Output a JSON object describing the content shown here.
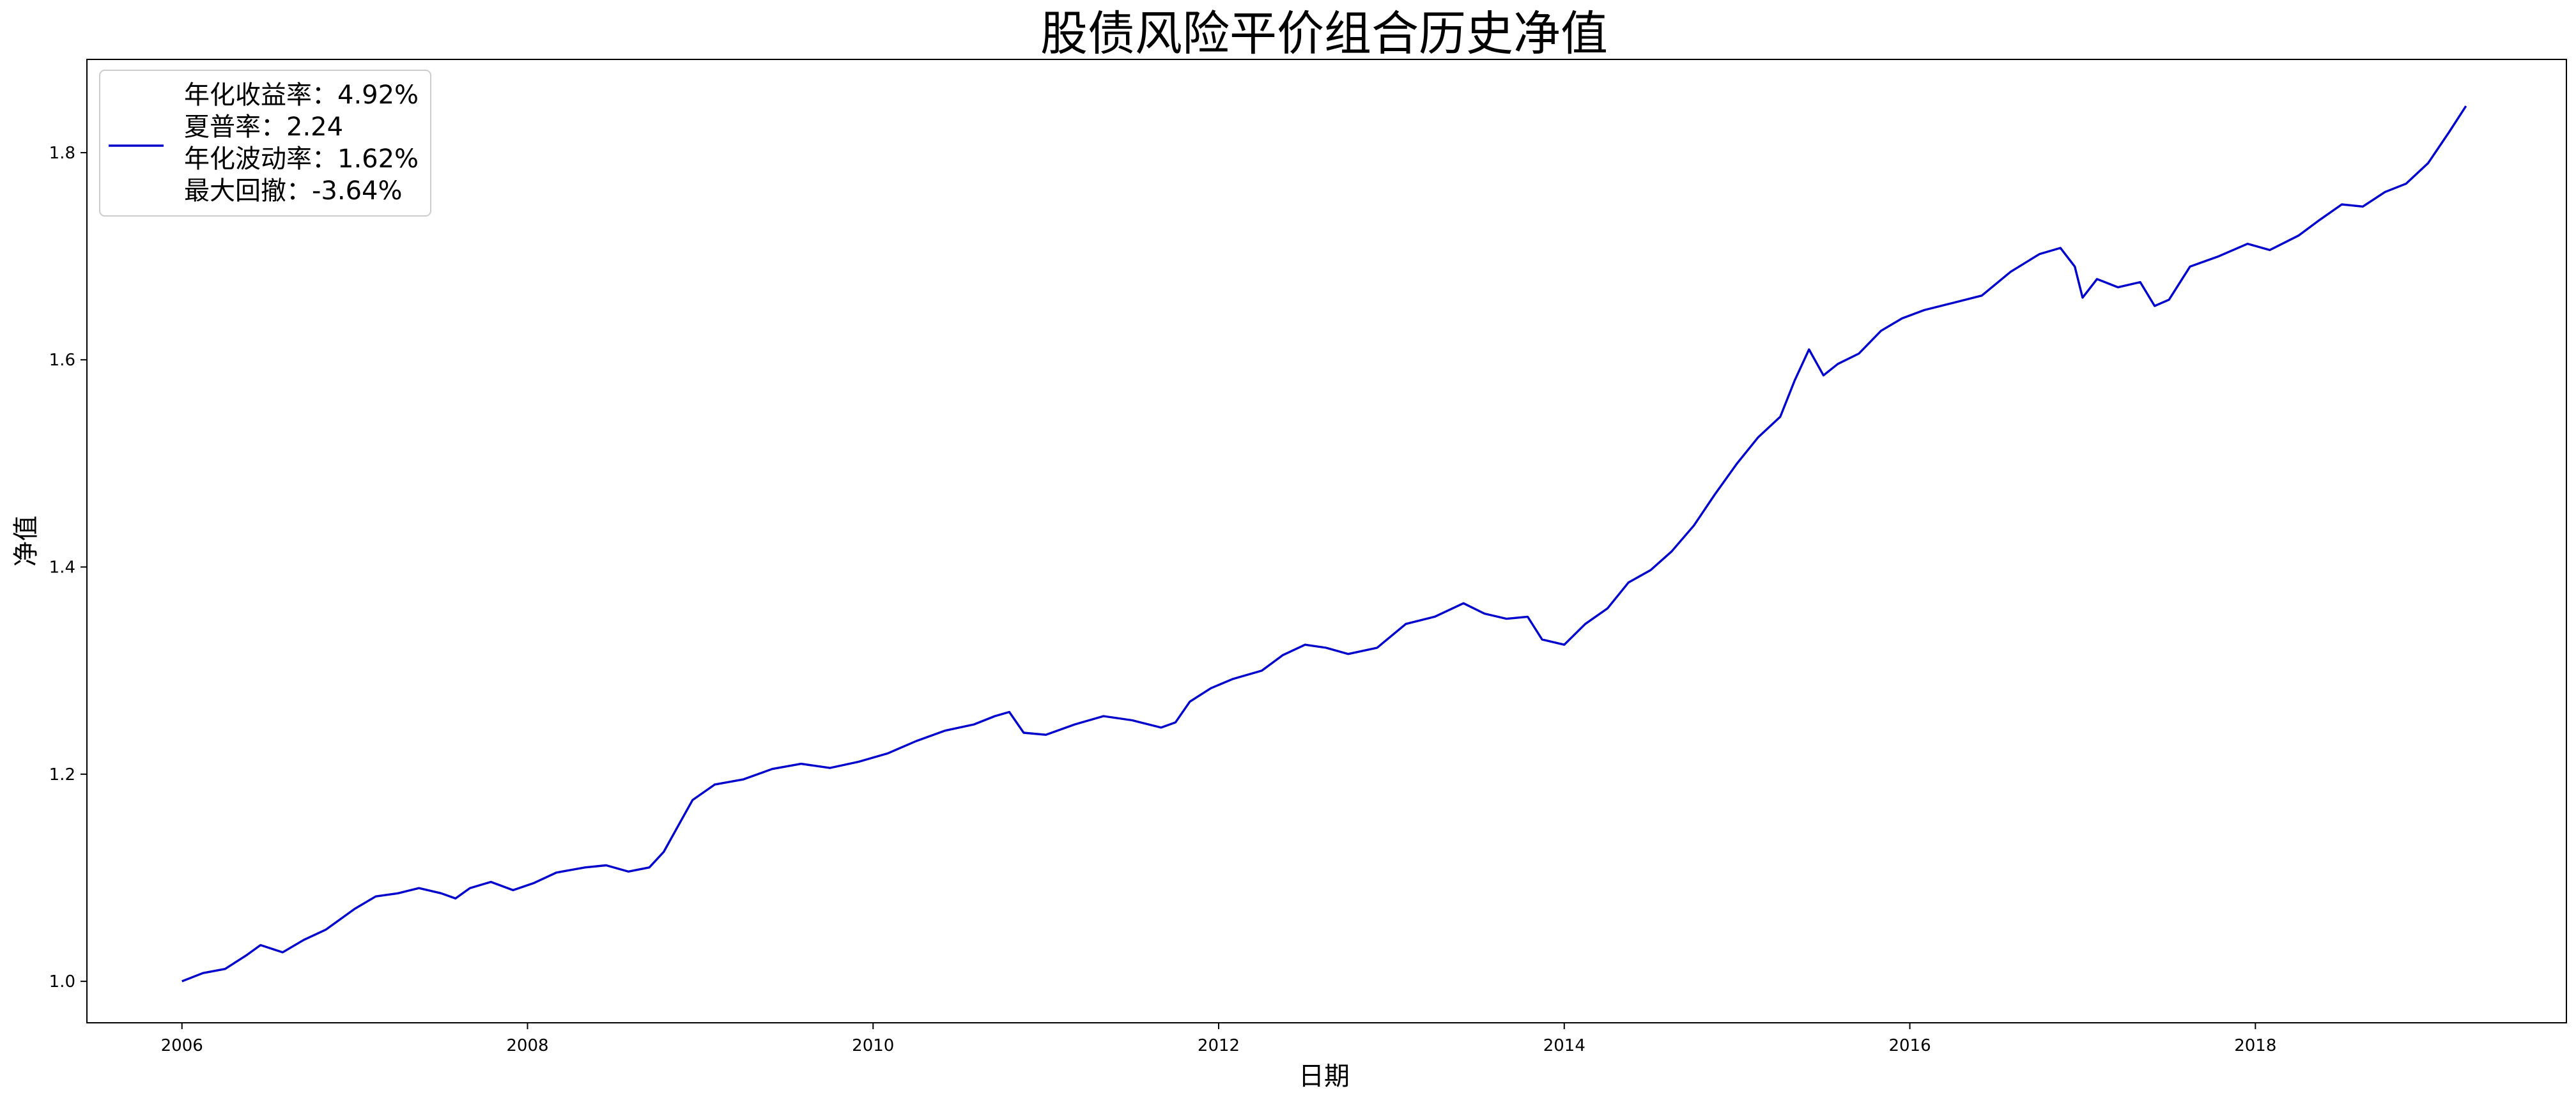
{
  "chart_data": {
    "type": "line",
    "title": "股债风险平价组合历史净值",
    "xlabel": "日期",
    "ylabel": "净值",
    "xlim": [
      2005.45,
      2019.8
    ],
    "ylim": [
      0.96,
      1.89
    ],
    "x_ticks": [
      2006,
      2008,
      2010,
      2012,
      2014,
      2016,
      2018
    ],
    "y_ticks": [
      1.0,
      1.2,
      1.4,
      1.6,
      1.8
    ],
    "y_tick_labels": [
      "1.0",
      "1.2",
      "1.4",
      "1.6",
      "1.8"
    ],
    "grid": false,
    "legend_position": "top-left",
    "series": [
      {
        "legend": [
          "年化收益率：4.92%",
          "夏普率：2.24",
          "年化波动率：1.62%",
          "最大回撤：-3.64%"
        ],
        "color": "#0000cc",
        "points": [
          [
            "2006-01-01",
            1.0
          ],
          [
            "2006-02-15",
            1.008
          ],
          [
            "2006-04-01",
            1.012
          ],
          [
            "2006-05-15",
            1.025
          ],
          [
            "2006-06-15",
            1.035
          ],
          [
            "2006-08-01",
            1.028
          ],
          [
            "2006-09-15",
            1.04
          ],
          [
            "2006-11-01",
            1.05
          ],
          [
            "2007-01-01",
            1.07
          ],
          [
            "2007-02-15",
            1.082
          ],
          [
            "2007-04-01",
            1.085
          ],
          [
            "2007-05-15",
            1.09
          ],
          [
            "2007-07-01",
            1.085
          ],
          [
            "2007-08-01",
            1.08
          ],
          [
            "2007-09-01",
            1.09
          ],
          [
            "2007-10-15",
            1.096
          ],
          [
            "2007-12-01",
            1.088
          ],
          [
            "2008-01-15",
            1.095
          ],
          [
            "2008-03-01",
            1.105
          ],
          [
            "2008-05-01",
            1.11
          ],
          [
            "2008-06-15",
            1.112
          ],
          [
            "2008-08-01",
            1.106
          ],
          [
            "2008-09-15",
            1.11
          ],
          [
            "2008-10-15",
            1.125
          ],
          [
            "2008-11-15",
            1.15
          ],
          [
            "2008-12-15",
            1.175
          ],
          [
            "2009-02-01",
            1.19
          ],
          [
            "2009-04-01",
            1.195
          ],
          [
            "2009-06-01",
            1.205
          ],
          [
            "2009-08-01",
            1.21
          ],
          [
            "2009-10-01",
            1.206
          ],
          [
            "2009-12-01",
            1.212
          ],
          [
            "2010-02-01",
            1.22
          ],
          [
            "2010-04-01",
            1.232
          ],
          [
            "2010-06-01",
            1.242
          ],
          [
            "2010-08-01",
            1.248
          ],
          [
            "2010-09-15",
            1.256
          ],
          [
            "2010-10-15",
            1.26
          ],
          [
            "2010-11-15",
            1.24
          ],
          [
            "2011-01-01",
            1.238
          ],
          [
            "2011-03-01",
            1.248
          ],
          [
            "2011-05-01",
            1.256
          ],
          [
            "2011-07-01",
            1.252
          ],
          [
            "2011-09-01",
            1.245
          ],
          [
            "2011-10-01",
            1.25
          ],
          [
            "2011-11-01",
            1.27
          ],
          [
            "2011-12-15",
            1.283
          ],
          [
            "2012-02-01",
            1.292
          ],
          [
            "2012-04-01",
            1.3
          ],
          [
            "2012-05-15",
            1.315
          ],
          [
            "2012-07-01",
            1.325
          ],
          [
            "2012-08-15",
            1.322
          ],
          [
            "2012-10-01",
            1.316
          ],
          [
            "2012-12-01",
            1.322
          ],
          [
            "2013-02-01",
            1.345
          ],
          [
            "2013-04-01",
            1.352
          ],
          [
            "2013-06-01",
            1.365
          ],
          [
            "2013-07-15",
            1.355
          ],
          [
            "2013-09-01",
            1.35
          ],
          [
            "2013-10-15",
            1.352
          ],
          [
            "2013-11-15",
            1.33
          ],
          [
            "2014-01-01",
            1.325
          ],
          [
            "2014-02-15",
            1.345
          ],
          [
            "2014-04-01",
            1.36
          ],
          [
            "2014-05-15",
            1.385
          ],
          [
            "2014-07-01",
            1.397
          ],
          [
            "2014-08-15",
            1.415
          ],
          [
            "2014-10-01",
            1.44
          ],
          [
            "2014-11-15",
            1.47
          ],
          [
            "2015-01-01",
            1.5
          ],
          [
            "2015-02-15",
            1.525
          ],
          [
            "2015-04-01",
            1.545
          ],
          [
            "2015-05-01",
            1.58
          ],
          [
            "2015-06-01",
            1.61
          ],
          [
            "2015-07-01",
            1.585
          ],
          [
            "2015-08-01",
            1.596
          ],
          [
            "2015-09-15",
            1.606
          ],
          [
            "2015-11-01",
            1.628
          ],
          [
            "2015-12-15",
            1.64
          ],
          [
            "2016-02-01",
            1.648
          ],
          [
            "2016-04-01",
            1.655
          ],
          [
            "2016-06-01",
            1.662
          ],
          [
            "2016-08-01",
            1.685
          ],
          [
            "2016-10-01",
            1.702
          ],
          [
            "2016-11-15",
            1.708
          ],
          [
            "2016-12-15",
            1.69
          ],
          [
            "2017-01-01",
            1.66
          ],
          [
            "2017-02-01",
            1.678
          ],
          [
            "2017-03-15",
            1.67
          ],
          [
            "2017-05-01",
            1.675
          ],
          [
            "2017-06-01",
            1.652
          ],
          [
            "2017-07-01",
            1.658
          ],
          [
            "2017-08-15",
            1.69
          ],
          [
            "2017-10-15",
            1.7
          ],
          [
            "2017-12-15",
            1.712
          ],
          [
            "2018-02-01",
            1.706
          ],
          [
            "2018-04-01",
            1.72
          ],
          [
            "2018-05-15",
            1.735
          ],
          [
            "2018-07-01",
            1.75
          ],
          [
            "2018-08-15",
            1.748
          ],
          [
            "2018-10-01",
            1.762
          ],
          [
            "2018-11-15",
            1.77
          ],
          [
            "2019-01-01",
            1.79
          ],
          [
            "2019-02-15",
            1.82
          ],
          [
            "2019-03-20",
            1.845
          ]
        ]
      }
    ]
  }
}
